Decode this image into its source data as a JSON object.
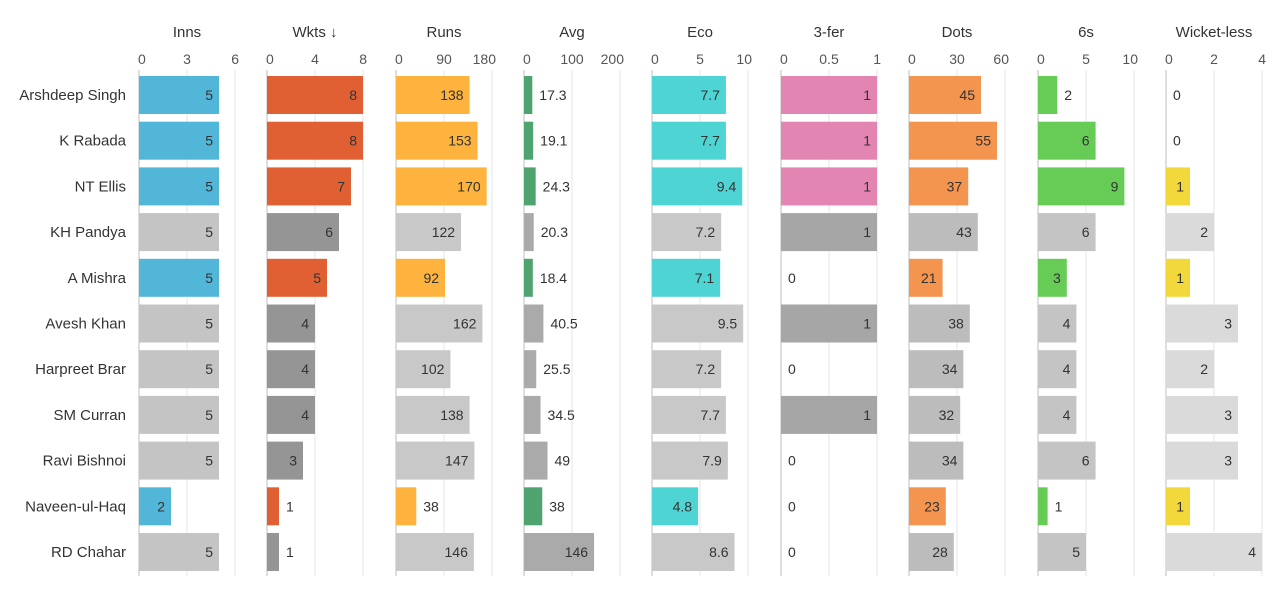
{
  "chart_data": {
    "type": "bar",
    "players": [
      "Arshdeep Singh",
      "K Rabada",
      "NT Ellis",
      "KH Pandya",
      "A Mishra",
      "Avesh Khan",
      "Harpreet Brar",
      "SM Curran",
      "Ravi Bishnoi",
      "Naveen-ul-Haq",
      "RD Chahar"
    ],
    "columns": [
      {
        "key": "inns",
        "title": "Inns",
        "ticks": [
          "0",
          "3",
          "6"
        ],
        "xlim": [
          0,
          6
        ],
        "values": [
          5,
          5,
          5,
          5,
          5,
          5,
          5,
          5,
          5,
          2,
          5
        ],
        "highlight": [
          true,
          true,
          true,
          false,
          true,
          false,
          false,
          false,
          false,
          true,
          false
        ],
        "color": "#52b6d8",
        "other_color": "#c4c4c4"
      },
      {
        "key": "wkts",
        "title": "Wkts ↓",
        "ticks": [
          "0",
          "4",
          "8"
        ],
        "xlim": [
          0,
          8
        ],
        "values": [
          8,
          8,
          7,
          6,
          5,
          4,
          4,
          4,
          3,
          1,
          1
        ],
        "highlight": [
          true,
          true,
          true,
          false,
          true,
          false,
          false,
          false,
          false,
          true,
          false
        ],
        "color": "#e06033",
        "other_color": "#959595"
      },
      {
        "key": "runs",
        "title": "Runs",
        "ticks": [
          "0",
          "90",
          "180"
        ],
        "xlim": [
          0,
          180
        ],
        "values": [
          138,
          153,
          170,
          122,
          92,
          162,
          102,
          138,
          147,
          38,
          146
        ],
        "highlight": [
          true,
          true,
          true,
          false,
          true,
          false,
          false,
          false,
          false,
          true,
          false
        ],
        "color": "#fdb33d",
        "other_color": "#c8c8c8"
      },
      {
        "key": "avg",
        "title": "Avg",
        "ticks": [
          "0",
          "100",
          "200"
        ],
        "xlim": [
          0,
          200
        ],
        "values": [
          17.3,
          19.1,
          24.3,
          20.3,
          18.4,
          40.5,
          25.5,
          34.5,
          49,
          38,
          146
        ],
        "highlight": [
          true,
          true,
          true,
          false,
          true,
          false,
          false,
          false,
          false,
          true,
          false
        ],
        "color": "#4fa36f",
        "other_color": "#aaaaaa"
      },
      {
        "key": "eco",
        "title": "Eco",
        "ticks": [
          "0",
          "5",
          "10"
        ],
        "xlim": [
          0,
          10
        ],
        "values": [
          7.7,
          7.7,
          9.4,
          7.2,
          7.1,
          9.5,
          7.2,
          7.7,
          7.9,
          4.8,
          8.6
        ],
        "highlight": [
          true,
          true,
          true,
          false,
          true,
          false,
          false,
          false,
          false,
          true,
          false
        ],
        "color": "#4fd4d4",
        "other_color": "#c8c8c8"
      },
      {
        "key": "threefer",
        "title": "3-fer",
        "ticks": [
          "0",
          "0.5",
          "1"
        ],
        "xlim": [
          0,
          1
        ],
        "values": [
          1,
          1,
          1,
          1,
          0,
          1,
          0,
          1,
          0,
          0,
          0
        ],
        "highlight": [
          true,
          true,
          true,
          false,
          true,
          false,
          false,
          false,
          false,
          true,
          false
        ],
        "color": "#e285b2",
        "other_color": "#a6a6a6"
      },
      {
        "key": "dots",
        "title": "Dots",
        "ticks": [
          "0",
          "30",
          "60"
        ],
        "xlim": [
          0,
          60
        ],
        "values": [
          45,
          55,
          37,
          43,
          21,
          38,
          34,
          32,
          34,
          23,
          28
        ],
        "highlight": [
          true,
          true,
          true,
          false,
          true,
          false,
          false,
          false,
          false,
          true,
          false
        ],
        "color": "#f3944f",
        "other_color": "#bcbcbc"
      },
      {
        "key": "sixes",
        "title": "6s",
        "ticks": [
          "0",
          "5",
          "10"
        ],
        "xlim": [
          0,
          10
        ],
        "values": [
          2,
          6,
          9,
          6,
          3,
          4,
          4,
          4,
          6,
          1,
          5
        ],
        "highlight": [
          true,
          true,
          true,
          false,
          true,
          false,
          false,
          false,
          false,
          true,
          false
        ],
        "color": "#66cc55",
        "other_color": "#c4c4c4"
      },
      {
        "key": "wicketless",
        "title": "Wicket-less",
        "ticks": [
          "0",
          "2",
          "4"
        ],
        "xlim": [
          0,
          4
        ],
        "values": [
          0,
          0,
          1,
          2,
          1,
          3,
          2,
          3,
          3,
          1,
          4
        ],
        "highlight": [
          true,
          true,
          true,
          false,
          true,
          false,
          false,
          false,
          false,
          true,
          false
        ],
        "color": "#f2d83a",
        "other_color": "#dadada"
      }
    ]
  }
}
